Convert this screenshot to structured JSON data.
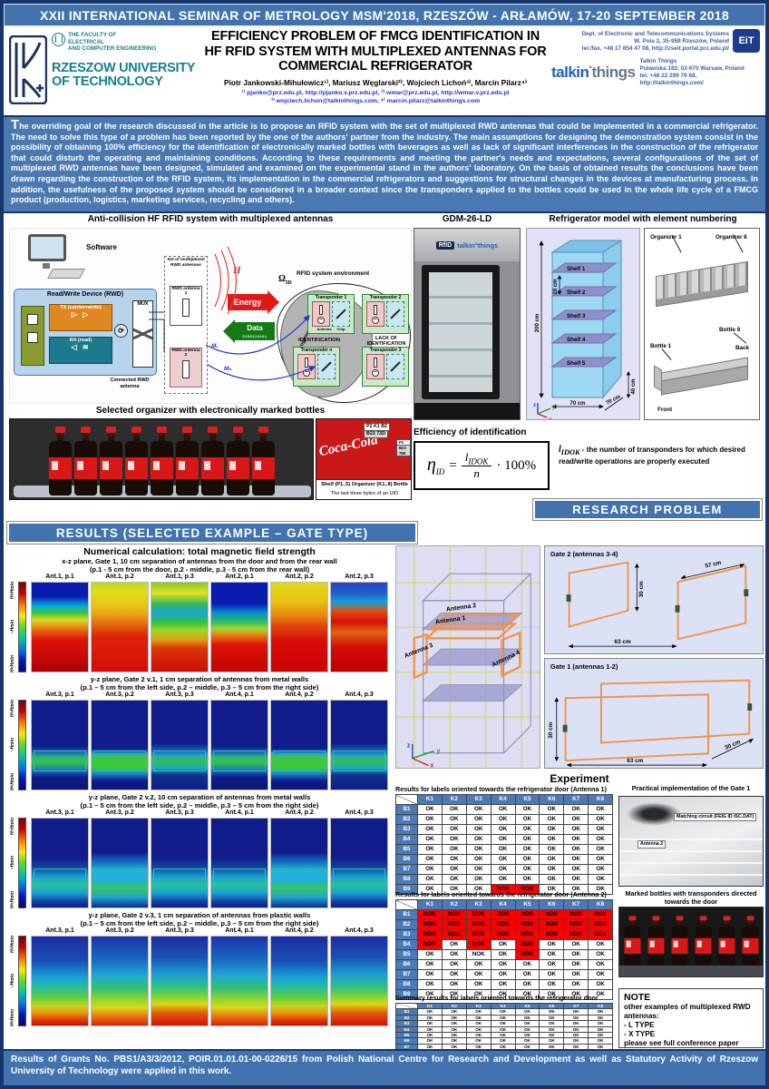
{
  "banner": {
    "text": "XXII INTERNATIONAL SEMINAR OF METROLOGY MSM'2018, RZESZÓW - ARŁAMÓW, 17-20 SEPTEMBER 2018"
  },
  "header": {
    "faculty": [
      "THE FACULTY OF",
      "ELECTRICAL",
      "AND COMPUTER ENGINEERING"
    ],
    "university": "RZESZOW UNIVERSITY OF TECHNOLOGY",
    "title": "EFFICIENCY PROBLEM OF FMCG IDENTIFICATION IN HF RFID SYSTEM WITH MULTIPLEXED ANTENNAS FOR COMMERCIAL REFRIGERATOR",
    "authors": "Piotr Jankowski-Mihułowicz¹⁾, Mariusz Węglarski²⁾, Wojciech Lichoń³⁾, Marcin Pilarz⁴⁾",
    "links1": "¹⁾ pjanko@prz.edu.pl, http://pjanko.v.prz.edu.pl,  ²⁾ wmar@prz.edu.pl, http://wmar.v.prz.edu.pl",
    "links2": "³⁾ wojciech.lichon@talkinthings.com,  ⁴⁾ marcin.pilarz@talkinthings.com",
    "dept": [
      "Dept. of Electronic and Telecommunications Systems",
      "W. Pola 2, 35-959 Rzeszów, Poland",
      "tel./fax. +48 17 854 47 08, http://zseit.portal.prz.edu.pl/"
    ],
    "eit_logo": "EiT",
    "talkin_logo": {
      "part1": "talkin",
      "dot": "°",
      "part2": "things"
    },
    "talkin": [
      "Talkin Things",
      "Pulawska 182, 02-670 Warsaw, Poland",
      "tel. +48 22 299 79 68, http://talkinthings.com/"
    ]
  },
  "abstract": {
    "text": "The overriding goal of the research discussed in the article is to propose an RFID system with the set of multiplexed RWD antennas that could be implemented in a commercial refrigerator. The need to solve this type of a problem has been reported by the one of the authors' partner from the industry. The main assumptions for designing the demonstration system consist in the possibility of obtaining 100% efficiency for the identification of electronically marked bottles with beverages as well as lack of significant interferences in the construction of the refrigerator that could disturb the operating and maintaining conditions. According to these requirements and meeting the partner's needs and expectations, several configurations of the set of multiplexed RWD antennas have been designed, simulated and examined on the experimental stand in the authors' laboratory. On the basis of obtained results the conclusions have been drawn regarding the construction of the RFID system, its implementation in the commercial refrigerators and suggestions for structural changes in the devices at manufacturing process. In addition, the usefulness of the proposed system should be considered in a broader context since the transponders applied to the bottles could be used in the whole life cycle of a FMCG product (production, logistics, marketing services, recycling and others)."
  },
  "figures": {
    "diagram": {
      "caption": "Anti-collision HF RFID system with multiplexed antennas",
      "software": "Software",
      "rwd": "Read/Write Device (RWD)",
      "tx": "TX (carrier+write)",
      "rx": "RX (read)",
      "mux": "MUX",
      "set": "Set of multiplexed RWD antennas",
      "ant1": "RWD antenna 1",
      "ant2": "RWD antenna 2",
      "connected": "Connected RWD antenna",
      "energy": "Energy",
      "data": "Data",
      "bits": "0100110101",
      "h": "H",
      "omega": "Ω",
      "omega_sub": "ID",
      "env": "RFID system environment",
      "iz": "Interrogation Zone (IZ)",
      "t1": "Transponder 1",
      "t2": "Transponder 2",
      "tn": "Transponder n",
      "t3": "Transponder 3",
      "antenna": "Antenna",
      "chip": "Chip",
      "ident": "IDENTIFICATION",
      "lack": "LACK OF IDENTIFICATION",
      "m1": "M₁",
      "mn": "Mₙ"
    },
    "bottles": {
      "caption": "Selected organizer with electronically marked bottles",
      "tag1": "P2 K1 B2",
      "tag2": "B23 73D",
      "tag3": "P2 K1 B3",
      "tag4": "B23 769",
      "coke": "Coca-Cola",
      "legend1": "Shelf (P1..5) Organizer (K1..8) Bottle (B1..9)",
      "legend2": "The last three bytes of an UID",
      "count": 9
    },
    "gdm": {
      "caption": "GDM-26-LD",
      "logo1": "RfID",
      "logo2": "talkin°things"
    },
    "model": {
      "caption": "Refrigerator model with element numbering",
      "shelves": [
        "Shelf 1",
        "Shelf 2",
        "Shelf 3",
        "Shelf 4",
        "Shelf 5"
      ],
      "dim_h": "200 cm",
      "dim_shelf": "28 cm",
      "dim_w": "70 cm",
      "dim_d": "70 cm",
      "dim_base": "40 cm",
      "ax_x": "x",
      "ax_y": "y",
      "ax_z": "z",
      "organizer1": "Organizer 1",
      "organizer8": "Organizer 8",
      "bottle1": "Bottle 1",
      "bottle9": "Bottle 9",
      "back": "Back",
      "front": "Front"
    },
    "efficiency": {
      "caption": "Efficiency of identification",
      "eta": "η",
      "eta_sub": "ID",
      "eq": "=",
      "num": "l",
      "num_sub": "IDOK",
      "den": "n",
      "mult": "· 100%",
      "note_sym": "l",
      "note_sym_sub": "IDOK",
      "note": "- the number of transponders for which desired read/write operations are properly executed"
    }
  },
  "banners": {
    "research": "RESEARCH PROBLEM",
    "results": "RESULTS (SELECTED EXAMPLE – GATE TYPE)"
  },
  "results": {
    "scale_labels": [
      "H>Hmin",
      "~Hmin",
      "H<Hmin"
    ],
    "groups": [
      {
        "title": "Numerical calculation: total magnetic field strength",
        "sub1": "x-z plane, Gate 1, 10 cm separation of antennas from the door and from the rear wall",
        "sub2": "(p.1 - 5 cm from the door, p.2 - middle, p.3 - 5 cm from the rear wall)",
        "boxed": false,
        "maps": [
          {
            "label": "Ant.1, p.1",
            "v": "a"
          },
          {
            "label": "Ant.1, p.2",
            "v": "b"
          },
          {
            "label": "Ant.1, p.3",
            "v": "c"
          },
          {
            "label": "Ant.2, p.1",
            "v": "d"
          },
          {
            "label": "Ant.2, p.2",
            "v": "e"
          },
          {
            "label": "Ant.2, p.3",
            "v": "f"
          }
        ]
      },
      {
        "title": "",
        "sub1": "y-z plane, Gate 2 v.1, 1 cm separation of antennas from metal walls",
        "sub2": "(p.1 – 5 cm from the left side, p.2 – middle, p.3 – 5 cm from the right side)",
        "boxed": true,
        "maps": [
          {
            "label": "Ant.3, p.1",
            "v": "g"
          },
          {
            "label": "Ant.3, p.2",
            "v": "h"
          },
          {
            "label": "Ant.3, p.3",
            "v": "i"
          },
          {
            "label": "Ant.4, p.1",
            "v": "g"
          },
          {
            "label": "Ant.4, p.2",
            "v": "h"
          },
          {
            "label": "Ant.4, p.3",
            "v": "i"
          }
        ]
      },
      {
        "title": "",
        "sub1": "y-z plane, Gate 2 v.2, 10 cm separation of antennas from metal walls",
        "sub2": "(p.1 – 5 cm from the left side, p.2 – middle, p.3 – 5 cm from the right side)",
        "boxed": true,
        "maps": [
          {
            "label": "Ant.3, p.1",
            "v": "j"
          },
          {
            "label": "Ant.3, p.2",
            "v": "k"
          },
          {
            "label": "Ant.3, p.3",
            "v": "j"
          },
          {
            "label": "Ant.4, p.1",
            "v": "j"
          },
          {
            "label": "Ant.4, p.2",
            "v": "k"
          },
          {
            "label": "Ant.4, p.3",
            "v": "j"
          }
        ]
      },
      {
        "title": "",
        "sub1": "y-z plane, Gate 2 v.3, 1 cm separation of antennas from plastic walls",
        "sub2": "(p.1 – 5 cm from the left side, p.2 – middle, p.3 – 5 cm from the right side)",
        "boxed": false,
        "maps": [
          {
            "label": "Ant.3, p.1",
            "v": "l"
          },
          {
            "label": "Ant.3, p.2",
            "v": "m"
          },
          {
            "label": "Ant.3, p.3",
            "v": "n"
          },
          {
            "label": "Ant.4, p.1",
            "v": "m"
          },
          {
            "label": "Ant.4, p.2",
            "v": "l"
          },
          {
            "label": "Ant.4, p.3",
            "v": "n"
          }
        ]
      }
    ],
    "model3d": {
      "a1": "Antenna 1",
      "a2": "Antenna 2",
      "a3": "Antenna 3",
      "a4": "Antenna 4",
      "ax": "x",
      "ay": "y",
      "az": "z"
    },
    "gate2": {
      "title": "Gate 2 (antennas 3-4)",
      "d1": "30 cm",
      "d2": "57 cm",
      "d3": "63 cm"
    },
    "gate1": {
      "title": "Gate 1 (antennas 1-2)",
      "d1": "30 cm",
      "d2": "63 cm",
      "d3": "30 cm"
    },
    "experiment_heading": "Experiment"
  },
  "experiment": {
    "tables": [
      {
        "caption": "Results for labels oriented towards the refrigerator door (Antenna 1)",
        "cols": [
          "K1",
          "K2",
          "K3",
          "K4",
          "K5",
          "K6",
          "K7",
          "K8"
        ],
        "rows": [
          {
            "label": "B1",
            "cells": [
              "OK",
              "OK",
              "OK",
              "OK",
              "OK",
              "OK",
              "OK",
              "OK"
            ]
          },
          {
            "label": "B2",
            "cells": [
              "OK",
              "OK",
              "OK",
              "OK",
              "OK",
              "OK",
              "OK",
              "OK"
            ]
          },
          {
            "label": "B3",
            "cells": [
              "OK",
              "OK",
              "OK",
              "OK",
              "OK",
              "OK",
              "OK",
              "OK"
            ]
          },
          {
            "label": "B4",
            "cells": [
              "OK",
              "OK",
              "OK",
              "OK",
              "OK",
              "OK",
              "OK",
              "OK"
            ]
          },
          {
            "label": "B5",
            "cells": [
              "OK",
              "OK",
              "OK",
              "OK",
              "OK",
              "OK",
              "OK",
              "OK"
            ]
          },
          {
            "label": "B6",
            "cells": [
              "OK",
              "OK",
              "OK",
              "OK",
              "OK",
              "OK",
              "OK",
              "OK"
            ]
          },
          {
            "label": "B7",
            "cells": [
              "OK",
              "OK",
              "OK",
              "OK",
              "OK",
              "OK",
              "OK",
              "OK"
            ]
          },
          {
            "label": "B8",
            "cells": [
              "OK",
              "OK",
              "OK",
              "OK",
              "OK",
              "OK",
              "OK",
              "OK"
            ]
          },
          {
            "label": "B9",
            "cells": [
              "OK",
              "OK",
              "OK",
              "NOK",
              "NOK",
              "OK",
              "OK",
              "OK"
            ]
          }
        ],
        "plain": []
      },
      {
        "caption": "Results for labels oriented towards the refrigerator door (Antenna 2)",
        "cols": [
          "K1",
          "K2",
          "K3",
          "K4",
          "K5",
          "K6",
          "K7",
          "K8"
        ],
        "rows": [
          {
            "label": "B1",
            "cells": [
              "NOK",
              "NOK",
              "NOK",
              "NOK",
              "NOK",
              "NOK",
              "NOK",
              "NOK"
            ]
          },
          {
            "label": "B2",
            "cells": [
              "NOK",
              "NOK",
              "NOK",
              "NOK",
              "NOK",
              "NOK",
              "NOK",
              "NOK"
            ]
          },
          {
            "label": "B3",
            "cells": [
              "NOK",
              "NOK",
              "NOK",
              "NOK",
              "NOK",
              "NOK",
              "NOK",
              "NOK"
            ]
          },
          {
            "label": "B4",
            "cells": [
              "NOK",
              "OK",
              "NOK",
              "OK",
              "NOK",
              "OK",
              "OK",
              "OK"
            ]
          },
          {
            "label": "B5",
            "cells": [
              "OK",
              "OK",
              "NOK",
              "OK",
              "NOK",
              "OK",
              "OK",
              "OK"
            ]
          },
          {
            "label": "B6",
            "cells": [
              "OK",
              "OK",
              "OK",
              "OK",
              "OK",
              "OK",
              "OK",
              "OK"
            ]
          },
          {
            "label": "B7",
            "cells": [
              "OK",
              "OK",
              "OK",
              "OK",
              "OK",
              "OK",
              "OK",
              "OK"
            ]
          },
          {
            "label": "B8",
            "cells": [
              "OK",
              "OK",
              "OK",
              "OK",
              "OK",
              "OK",
              "OK",
              "OK"
            ]
          },
          {
            "label": "B9",
            "cells": [
              "OK",
              "OK",
              "OK",
              "OK",
              "OK",
              "OK",
              "OK",
              "OK"
            ]
          }
        ],
        "plain": [
          [
            4,
            2
          ]
        ]
      },
      {
        "caption": "Summary results for labels oriented towards the refrigerator door (Gate 1)",
        "cols": [
          "K1",
          "K2",
          "K3",
          "K4",
          "K5",
          "K6",
          "K7",
          "K8"
        ],
        "rows": [
          {
            "label": "B1",
            "cells": [
              "OK",
              "OK",
              "OK",
              "OK",
              "OK",
              "OK",
              "OK",
              "OK"
            ]
          },
          {
            "label": "B2",
            "cells": [
              "OK",
              "OK",
              "OK",
              "OK",
              "OK",
              "OK",
              "OK",
              "OK"
            ]
          },
          {
            "label": "B3",
            "cells": [
              "OK",
              "OK",
              "OK",
              "OK",
              "OK",
              "OK",
              "OK",
              "OK"
            ]
          },
          {
            "label": "B4",
            "cells": [
              "OK",
              "OK",
              "OK",
              "OK",
              "OK",
              "OK",
              "OK",
              "OK"
            ]
          },
          {
            "label": "B5",
            "cells": [
              "OK",
              "OK",
              "OK",
              "OK",
              "OK",
              "OK",
              "OK",
              "OK"
            ]
          },
          {
            "label": "B6",
            "cells": [
              "OK",
              "OK",
              "OK",
              "OK",
              "OK",
              "OK",
              "OK",
              "OK"
            ]
          },
          {
            "label": "B7",
            "cells": [
              "OK",
              "OK",
              "OK",
              "OK",
              "OK",
              "OK",
              "OK",
              "OK"
            ]
          },
          {
            "label": "B8",
            "cells": [
              "OK",
              "OK",
              "OK",
              "OK",
              "OK",
              "OK",
              "OK",
              "OK"
            ]
          },
          {
            "label": "B9",
            "cells": [
              "OK",
              "OK",
              "OK",
              "OK",
              "OK",
              "OK",
              "OK",
              "OK"
            ]
          }
        ],
        "plain": []
      }
    ],
    "photo1": {
      "caption": "Practical implementation of the Gate 1",
      "label1": "Matching circuit (FEIG ID ISC.DAT)",
      "label2": "Antenna 2"
    },
    "photo2": {
      "caption": "Marked bottles with transponders directed towards the door",
      "count": 6
    },
    "note": {
      "title": "NOTE",
      "lines": [
        "other examples of multiplexed RWD antennas:",
        "- L TYPE",
        "- X TYPE",
        "please see full conference paper"
      ]
    }
  },
  "footer": {
    "text": "Results of Grants No. PBS1/A3/3/2012, POIR.01.01.01-00-0226/15 from Polish National Centre for Research and Development as well as Statutory Activity of Rzeszow University of Technology were applied in this work."
  },
  "colors": {
    "band_blue": "#4273ae",
    "abstract_blue": "#4a79b2",
    "navy_border": "#16356c",
    "teal_brand": "#157f90",
    "nok_red": "#ff0000",
    "table_header": "#4a7ab8"
  }
}
